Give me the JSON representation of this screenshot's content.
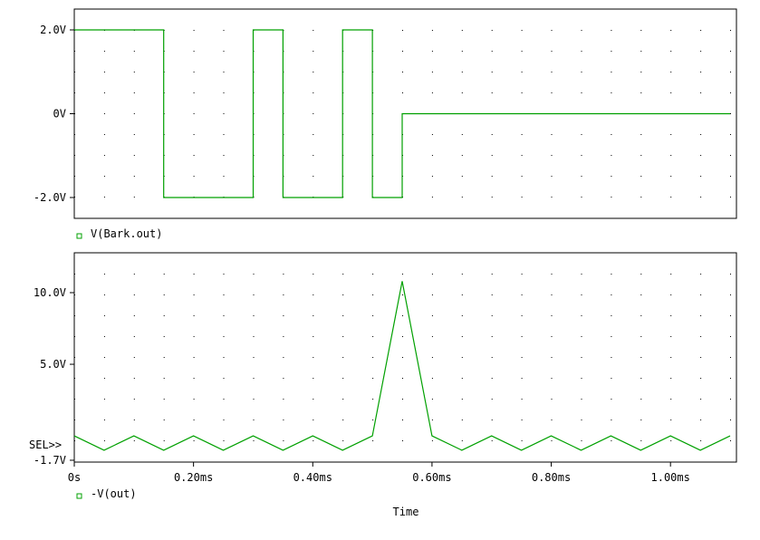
{
  "colors": {
    "trace": "#00a000",
    "frame": "#000000",
    "grid_dot": "#000000",
    "background": "#ffffff"
  },
  "xlabel": "Time",
  "chart_data": [
    {
      "type": "line",
      "title": "",
      "xlim": [
        0,
        1.1
      ],
      "ylim": [
        -2.5,
        2.5
      ],
      "x_unit": "ms",
      "yticks": [
        {
          "v": 2.0,
          "label": "2.0V"
        },
        {
          "v": 0.0,
          "label": "0V"
        },
        {
          "v": -2.0,
          "label": "-2.0V"
        }
      ],
      "series": [
        {
          "name": "V(Bark.out)",
          "x": [
            0,
            0.15,
            0.15,
            0.3,
            0.3,
            0.35,
            0.35,
            0.45,
            0.45,
            0.5,
            0.5,
            0.55,
            0.55,
            1.1
          ],
          "y": [
            2,
            2,
            -2,
            -2,
            2,
            2,
            -2,
            -2,
            2,
            2,
            -2,
            -2,
            0,
            0
          ]
        }
      ]
    },
    {
      "type": "line",
      "title": "",
      "xlim": [
        0,
        1.1
      ],
      "ylim": [
        -1.7,
        12.3
      ],
      "x_unit": "ms",
      "yticks": [
        {
          "v": 10.0,
          "label": "10.0V"
        },
        {
          "v": 5.0,
          "label": "5.0V"
        },
        {
          "v": -1.7,
          "label": "-1.7V"
        }
      ],
      "sel_marker": "SEL>>",
      "xticks": [
        {
          "v": 0.0,
          "label": "0s"
        },
        {
          "v": 0.2,
          "label": "0.20ms"
        },
        {
          "v": 0.4,
          "label": "0.40ms"
        },
        {
          "v": 0.6,
          "label": "0.60ms"
        },
        {
          "v": 0.8,
          "label": "0.80ms"
        },
        {
          "v": 1.0,
          "label": "1.00ms"
        }
      ],
      "series": [
        {
          "name": "-V(out)",
          "x": [
            0,
            0.05,
            0.1,
            0.15,
            0.2,
            0.25,
            0.3,
            0.35,
            0.4,
            0.45,
            0.5,
            0.55,
            0.6,
            0.65,
            0.7,
            0.75,
            0.8,
            0.85,
            0.9,
            0.95,
            1.0,
            1.05,
            1.1
          ],
          "y": [
            0.0,
            -1.0,
            0.0,
            -1.0,
            0.0,
            -1.0,
            0.0,
            -1.0,
            0.0,
            -1.0,
            0.0,
            10.8,
            0.0,
            -1.0,
            0.0,
            -1.0,
            0.0,
            -1.0,
            0.0,
            -1.0,
            0.0,
            -1.0,
            0.0
          ]
        }
      ]
    }
  ]
}
